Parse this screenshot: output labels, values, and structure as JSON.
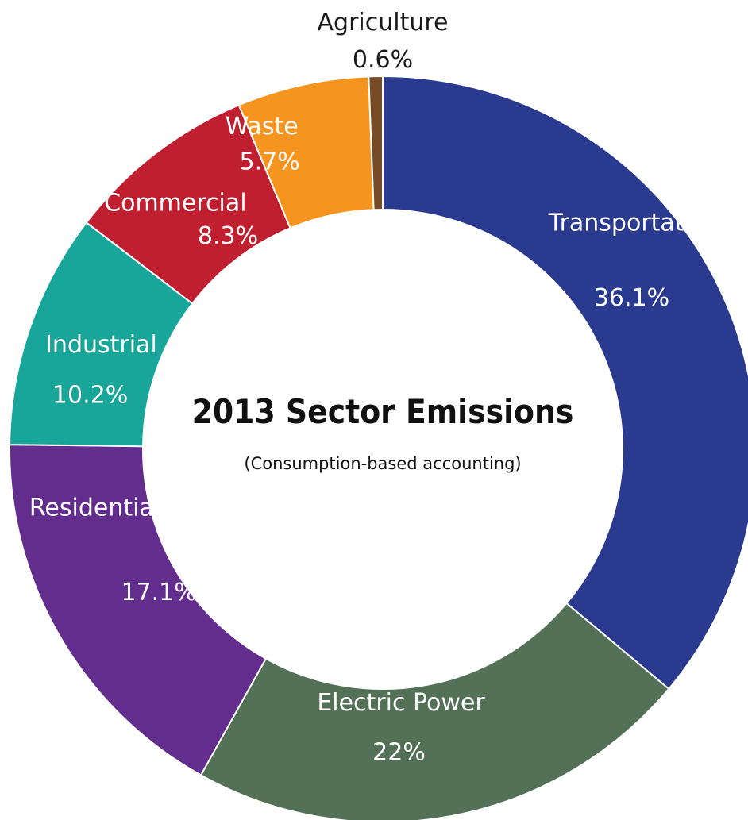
{
  "chart_data": {
    "type": "pie",
    "title": "2013 Sector Emissions",
    "subtitle": "(Consumption-based accounting)",
    "unit": "%",
    "slices": [
      {
        "category": "Transportation",
        "value": 36.1,
        "label": "36.1%",
        "color": "#293a8f"
      },
      {
        "category": "Electric Power",
        "value": 22.0,
        "label": "22%",
        "color": "#537156"
      },
      {
        "category": "Residential",
        "value": 17.1,
        "label": "17.1%",
        "color": "#632d8e"
      },
      {
        "category": "Industrial",
        "value": 10.2,
        "label": "10.2%",
        "color": "#18a69a"
      },
      {
        "category": "Commercial",
        "value": 8.3,
        "label": "8.3%",
        "color": "#bf1f2e"
      },
      {
        "category": "Waste",
        "value": 5.7,
        "label": "5.7%",
        "color": "#f5951f"
      },
      {
        "category": "Agriculture",
        "value": 0.6,
        "label": "0.6%",
        "color": "#774b26"
      }
    ]
  }
}
